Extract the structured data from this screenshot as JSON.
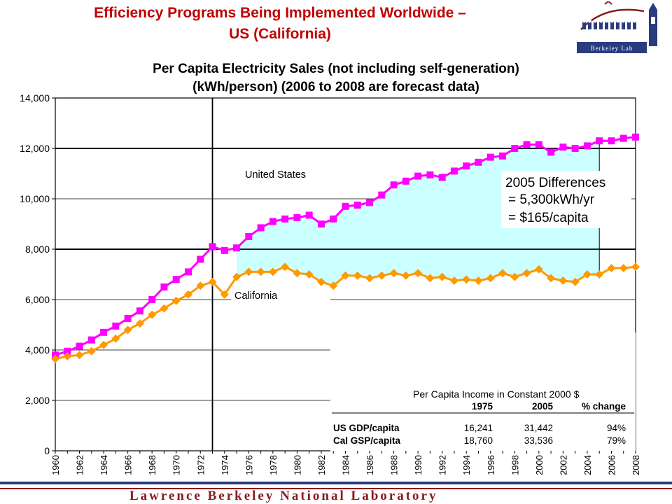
{
  "slide": {
    "title_line1": "Efficiency Programs Being Implemented Worldwide –",
    "title_line2": "US (California)",
    "logo_text": "Berkeley Lab",
    "footer": "Lawrence Berkeley National Laboratory"
  },
  "chart_data": {
    "type": "line",
    "title": "Per Capita Electricity Sales (not including self-generation)",
    "subtitle": "(kWh/person) (2006 to 2008 are forecast data)",
    "xlabel": "",
    "ylabel": "",
    "ylim": [
      0,
      14000
    ],
    "yticks": [
      "0",
      "2,000",
      "4,000",
      "6,000",
      "8,000",
      "10,000",
      "12,000",
      "14,000"
    ],
    "x": [
      1960,
      1961,
      1962,
      1963,
      1964,
      1965,
      1966,
      1967,
      1968,
      1969,
      1970,
      1971,
      1972,
      1973,
      1974,
      1975,
      1976,
      1977,
      1978,
      1979,
      1980,
      1981,
      1982,
      1983,
      1984,
      1985,
      1986,
      1987,
      1988,
      1989,
      1990,
      1991,
      1992,
      1993,
      1994,
      1995,
      1996,
      1997,
      1998,
      1999,
      2000,
      2001,
      2002,
      2003,
      2004,
      2005,
      2006,
      2007,
      2008
    ],
    "xticks": [
      "1960",
      "1962",
      "1964",
      "1966",
      "1968",
      "1970",
      "1972",
      "1974",
      "1976",
      "1978",
      "1980",
      "1982",
      "1984",
      "1986",
      "1988",
      "1990",
      "1992",
      "1994",
      "1996",
      "1998",
      "2000",
      "2002",
      "2004",
      "2006",
      "2008"
    ],
    "grid": true,
    "series": [
      {
        "name": "United States",
        "color": "#ff00ff",
        "marker": "square",
        "values": [
          3800,
          3950,
          4150,
          4400,
          4700,
          4950,
          5250,
          5550,
          6000,
          6500,
          6800,
          7100,
          7600,
          8100,
          7950,
          8050,
          8500,
          8850,
          9100,
          9200,
          9250,
          9350,
          9000,
          9200,
          9700,
          9750,
          9850,
          10150,
          10550,
          10700,
          10900,
          10950,
          10850,
          11100,
          11300,
          11450,
          11650,
          11700,
          12000,
          12150,
          12150,
          11850,
          12050,
          12000,
          12100,
          12300,
          12300,
          12400,
          12450
        ]
      },
      {
        "name": "California",
        "color": "#ff9900",
        "marker": "diamond",
        "values": [
          3650,
          3750,
          3800,
          3950,
          4200,
          4450,
          4800,
          5050,
          5400,
          5650,
          5950,
          6200,
          6550,
          6700,
          6200,
          6900,
          7100,
          7100,
          7100,
          7300,
          7050,
          7000,
          6700,
          6550,
          6950,
          6950,
          6850,
          6950,
          7050,
          6950,
          7050,
          6850,
          6900,
          6750,
          6800,
          6750,
          6850,
          7050,
          6900,
          7050,
          7200,
          6850,
          6750,
          6700,
          7000,
          7000,
          7250,
          7250,
          7300
        ]
      }
    ],
    "annotations": {
      "box_lines": [
        "2005 Differences",
        "= 5,300kWh/yr",
        "= $165/capita"
      ],
      "vline_year": 1973,
      "shade_from_year": 1975,
      "shade_to_year": 2005,
      "shade_color": "#ccffff"
    },
    "income_table": {
      "caption": "Per Capita Income in Constant 2000 $",
      "headers": [
        "",
        "1975",
        "2005",
        "% change"
      ],
      "rows": [
        [
          "US GDP/capita",
          "16,241",
          "31,442",
          "94%"
        ],
        [
          "Cal GSP/capita",
          "18,760",
          "33,536",
          "79%"
        ]
      ]
    }
  }
}
